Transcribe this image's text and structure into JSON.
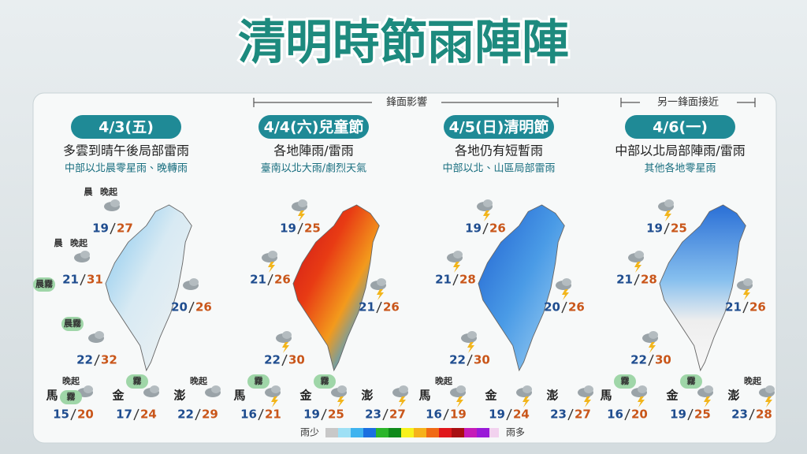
{
  "title": "清明時節雨陣陣",
  "fronts": [
    {
      "label": "鋒面影響"
    },
    {
      "label": "另一鋒面接近"
    }
  ],
  "days": [
    {
      "date": "4/3(五)",
      "headline": "多雲到晴午後局部雷雨",
      "subline": "中部以北晨零星雨、晚轉雨",
      "cities": [
        {
          "low": "19",
          "high": "27",
          "tags": [
            "晨",
            "晚起"
          ]
        },
        {
          "low": "21",
          "high": "31",
          "tags": [
            "晨",
            "晚起",
            "晨霧"
          ]
        },
        {
          "low": "20",
          "high": "26",
          "tags": []
        },
        {
          "low": "22",
          "high": "32",
          "tags": [
            "晨霧"
          ]
        }
      ],
      "islands": [
        {
          "name": "馬",
          "low": "15",
          "high": "20",
          "tags": [
            "晚起",
            "霧"
          ]
        },
        {
          "name": "金",
          "low": "17",
          "high": "24",
          "tags": [
            "霧"
          ]
        },
        {
          "name": "澎",
          "low": "22",
          "high": "29",
          "tags": [
            "晚起"
          ]
        }
      ]
    },
    {
      "date": "4/4(六)兒童節",
      "headline": "各地陣雨/雷雨",
      "subline": "臺南以北大雨/劇烈天氣",
      "cities": [
        {
          "low": "19",
          "high": "25",
          "tags": []
        },
        {
          "low": "21",
          "high": "26",
          "tags": []
        },
        {
          "low": "21",
          "high": "26",
          "tags": []
        },
        {
          "low": "22",
          "high": "30",
          "tags": []
        }
      ],
      "islands": [
        {
          "name": "馬",
          "low": "16",
          "high": "21",
          "tags": [
            "霧"
          ]
        },
        {
          "name": "金",
          "low": "19",
          "high": "25",
          "tags": [
            "霧"
          ]
        },
        {
          "name": "澎",
          "low": "23",
          "high": "27",
          "tags": []
        }
      ]
    },
    {
      "date": "4/5(日)清明節",
      "headline": "各地仍有短暫雨",
      "subline": "中部以北、山區局部雷雨",
      "cities": [
        {
          "low": "19",
          "high": "26",
          "tags": []
        },
        {
          "low": "21",
          "high": "28",
          "tags": []
        },
        {
          "low": "20",
          "high": "26",
          "tags": []
        },
        {
          "low": "22",
          "high": "30",
          "tags": []
        }
      ],
      "islands": [
        {
          "name": "馬",
          "low": "16",
          "high": "19",
          "tags": [
            "晚起"
          ]
        },
        {
          "name": "金",
          "low": "19",
          "high": "24",
          "tags": []
        },
        {
          "name": "澎",
          "low": "23",
          "high": "27",
          "tags": []
        }
      ]
    },
    {
      "date": "4/6(一)",
      "headline": "中部以北局部陣雨/雷雨",
      "subline": "其他各地零星雨",
      "cities": [
        {
          "low": "19",
          "high": "25",
          "tags": []
        },
        {
          "low": "21",
          "high": "28",
          "tags": []
        },
        {
          "low": "21",
          "high": "26",
          "tags": []
        },
        {
          "low": "22",
          "high": "30",
          "tags": []
        }
      ],
      "islands": [
        {
          "name": "馬",
          "low": "16",
          "high": "20",
          "tags": [
            "霧"
          ]
        },
        {
          "name": "金",
          "low": "19",
          "high": "25",
          "tags": [
            "霧"
          ]
        },
        {
          "name": "澎",
          "low": "23",
          "high": "28",
          "tags": [
            "晚起"
          ]
        }
      ]
    }
  ],
  "legend": {
    "low": "雨少",
    "high": "雨多"
  }
}
